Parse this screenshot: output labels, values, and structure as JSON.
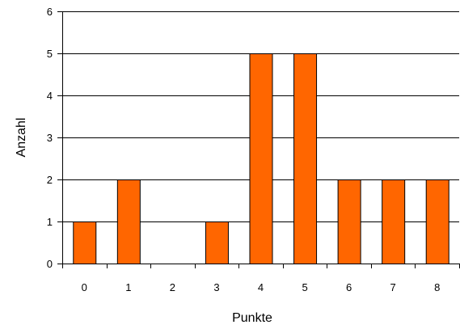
{
  "chart_data": {
    "type": "bar",
    "title": "",
    "xlabel": "Punkte",
    "ylabel": "Anzahl",
    "categories": [
      "0",
      "1",
      "2",
      "3",
      "4",
      "5",
      "6",
      "7",
      "8"
    ],
    "values": [
      1,
      2,
      0,
      1,
      5,
      5,
      2,
      2,
      2
    ],
    "ylim": [
      0,
      6
    ],
    "yticks": [
      "0",
      "1",
      "2",
      "3",
      "4",
      "5",
      "6"
    ],
    "grid": "horizontal",
    "legend": "none",
    "colors": {
      "bar_fill": "#ff6600",
      "bar_stroke": "#000000",
      "grid": "#000000",
      "axis": "#000000"
    }
  }
}
